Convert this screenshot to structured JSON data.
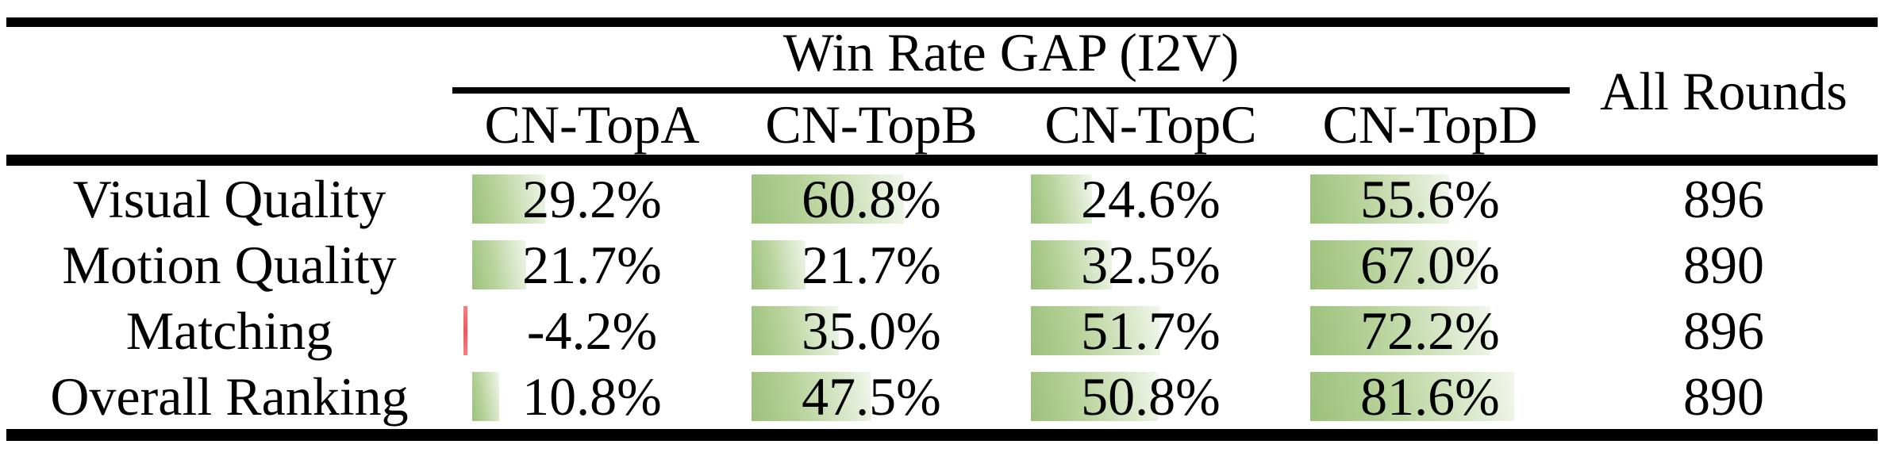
{
  "colors": {
    "bar_positive_start": "#9ac17a",
    "bar_positive_end": "#f2f7ec",
    "bar_negative": "#f3525a",
    "rule": "#000000",
    "background": "#ffffff",
    "text": "#000000"
  },
  "table": {
    "group_header": "Win Rate GAP (I2V)",
    "all_rounds_header": "All Rounds",
    "column_headers": [
      "CN-TopA",
      "CN-TopB",
      "CN-TopC",
      "CN-TopD"
    ],
    "rows": [
      {
        "label": "Visual Quality",
        "cells": [
          {
            "text": "29.2%",
            "value": 29.2
          },
          {
            "text": "60.8%",
            "value": 60.8
          },
          {
            "text": "24.6%",
            "value": 24.6
          },
          {
            "text": "55.6%",
            "value": 55.6
          }
        ],
        "all_rounds": "896"
      },
      {
        "label": "Motion Quality",
        "cells": [
          {
            "text": "21.7%",
            "value": 21.7
          },
          {
            "text": "21.7%",
            "value": 21.7
          },
          {
            "text": "32.5%",
            "value": 32.5
          },
          {
            "text": "67.0%",
            "value": 67.0
          }
        ],
        "all_rounds": "890"
      },
      {
        "label": "Matching",
        "cells": [
          {
            "text": "-4.2%",
            "value": -4.2
          },
          {
            "text": "35.0%",
            "value": 35.0
          },
          {
            "text": "51.7%",
            "value": 51.7
          },
          {
            "text": "72.2%",
            "value": 72.2
          }
        ],
        "all_rounds": "896"
      },
      {
        "label": "Overall Ranking",
        "cells": [
          {
            "text": "10.8%",
            "value": 10.8
          },
          {
            "text": "47.5%",
            "value": 47.5
          },
          {
            "text": "50.8%",
            "value": 50.8
          },
          {
            "text": "81.6%",
            "value": 81.6
          }
        ],
        "all_rounds": "890"
      }
    ]
  }
}
